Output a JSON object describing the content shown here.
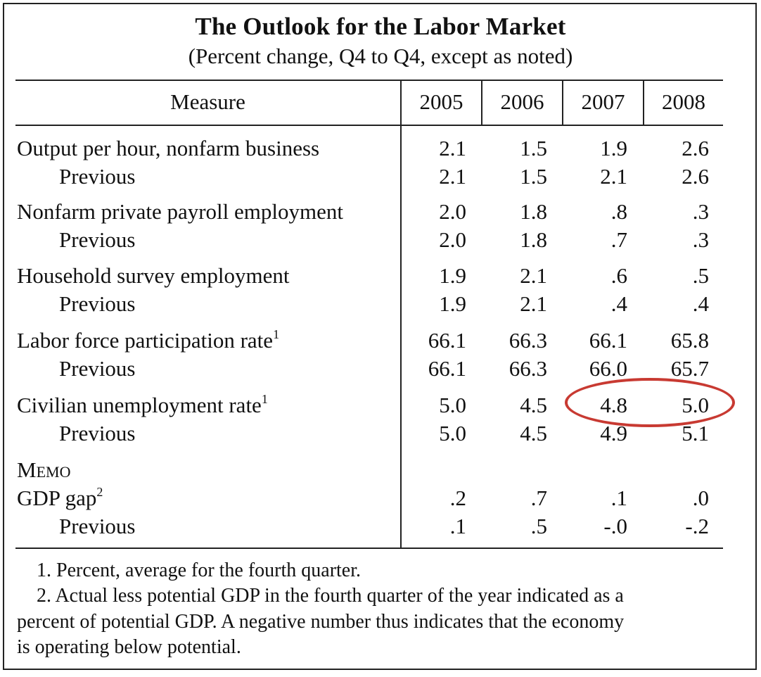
{
  "title": "The Outlook for the Labor Market",
  "subtitle": "(Percent change, Q4 to Q4, except as noted)",
  "columns": [
    "Measure",
    "2005",
    "2006",
    "2007",
    "2008"
  ],
  "rows": [
    {
      "label": "Output per hour, nonfarm business",
      "sup": "",
      "values": [
        "2.1",
        "1.5",
        "1.9",
        "2.6"
      ]
    },
    {
      "label": "Previous",
      "values": [
        "2.1",
        "1.5",
        "2.1",
        "2.6"
      ]
    },
    {
      "label": "Nonfarm private payroll employment",
      "sup": "",
      "values": [
        "2.0",
        "1.8",
        ".8",
        ".3"
      ]
    },
    {
      "label": "Previous",
      "values": [
        "2.0",
        "1.8",
        ".7",
        ".3"
      ]
    },
    {
      "label": "Household survey employment",
      "sup": "",
      "values": [
        "1.9",
        "2.1",
        ".6",
        ".5"
      ]
    },
    {
      "label": "Previous",
      "values": [
        "1.9",
        "2.1",
        ".4",
        ".4"
      ]
    },
    {
      "label": "Labor force participation rate",
      "sup": "1",
      "values": [
        "66.1",
        "66.3",
        "66.1",
        "65.8"
      ]
    },
    {
      "label": "Previous",
      "values": [
        "66.1",
        "66.3",
        "66.0",
        "65.7"
      ]
    },
    {
      "label": "Civilian unemployment rate",
      "sup": "1",
      "values": [
        "5.0",
        "4.5",
        "4.8",
        "5.0"
      ]
    },
    {
      "label": "Previous",
      "values": [
        "5.0",
        "4.5",
        "4.9",
        "5.1"
      ]
    },
    {
      "label": "GDP gap",
      "sup": "2",
      "values": [
        ".2",
        ".7",
        ".1",
        ".0"
      ]
    },
    {
      "label": "Previous",
      "values": [
        ".1",
        ".5",
        "-.0",
        "-.2"
      ]
    }
  ],
  "memo_label": "Memo",
  "footnotes": [
    "1. Percent, average for the fourth quarter.",
    "2. Actual less potential GDP in the fourth quarter of the year indicated as a",
    "percent of potential GDP.  A negative number thus indicates that the economy",
    "is operating below potential."
  ],
  "highlight_color": "#c83a32"
}
